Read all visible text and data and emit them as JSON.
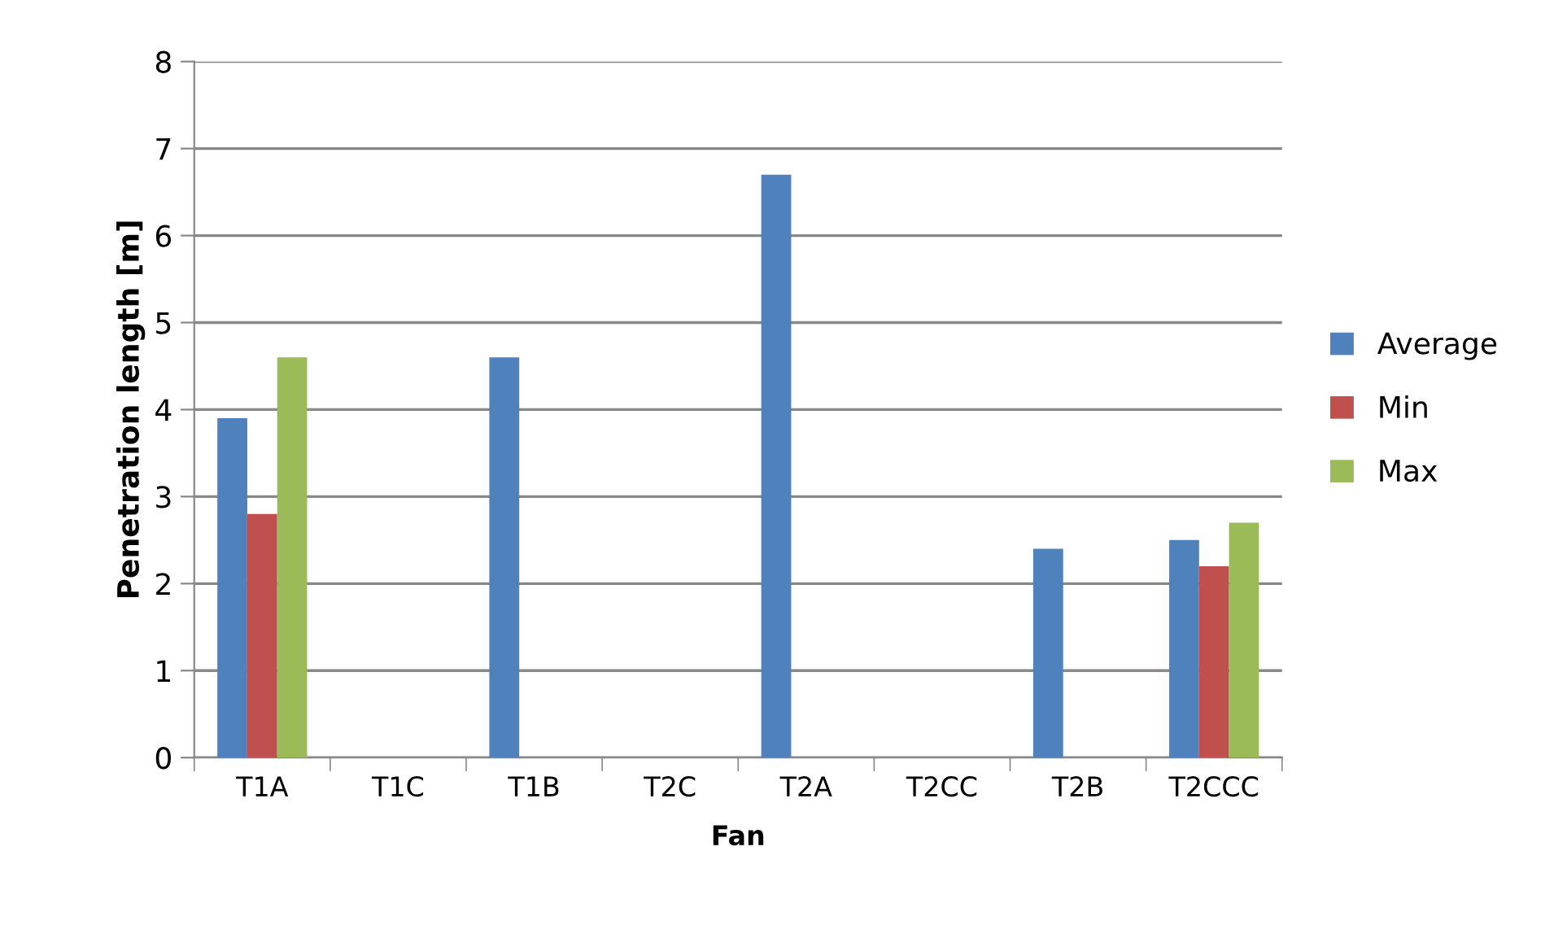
{
  "chart_data": {
    "type": "bar",
    "xlabel": "Fan",
    "ylabel": "Penetration length [m]",
    "categories": [
      "T1A",
      "T1C",
      "T1B",
      "T2C",
      "T2A",
      "T2CC",
      "T2B",
      "T2CCC"
    ],
    "series": [
      {
        "name": "Average",
        "color": "#4f81bd",
        "values": [
          3.9,
          null,
          4.6,
          null,
          6.7,
          null,
          2.4,
          2.5
        ]
      },
      {
        "name": "Min",
        "color": "#c0504d",
        "values": [
          2.8,
          null,
          null,
          null,
          null,
          null,
          null,
          2.2
        ]
      },
      {
        "name": "Max",
        "color": "#9bbb59",
        "values": [
          4.6,
          null,
          null,
          null,
          null,
          null,
          null,
          2.7
        ]
      }
    ],
    "ylim": [
      0,
      8
    ],
    "yticks": [
      0,
      1,
      2,
      3,
      4,
      5,
      6,
      7,
      8
    ],
    "grid": "y",
    "legend": "right"
  }
}
